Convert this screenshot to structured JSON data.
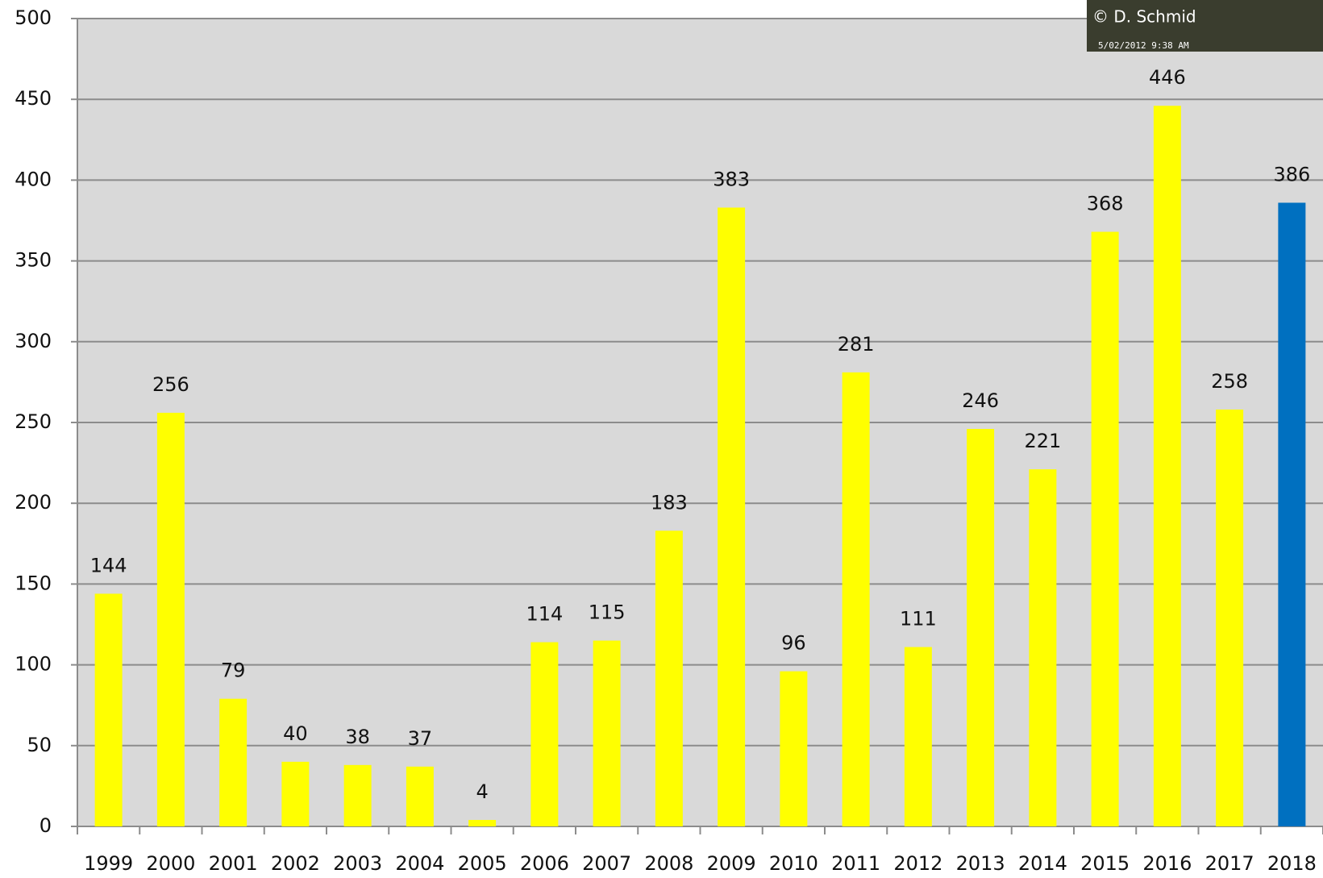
{
  "chart_data": {
    "type": "bar",
    "categories": [
      "1999",
      "2000",
      "2001",
      "2002",
      "2003",
      "2004",
      "2005",
      "2006",
      "2007",
      "2008",
      "2009",
      "2010",
      "2011",
      "2012",
      "2013",
      "2014",
      "2015",
      "2016",
      "2017",
      "2018"
    ],
    "values": [
      144,
      256,
      79,
      40,
      38,
      37,
      4,
      114,
      115,
      183,
      383,
      96,
      281,
      111,
      246,
      221,
      368,
      446,
      258,
      386
    ],
    "colors": [
      "#ffff00",
      "#ffff00",
      "#ffff00",
      "#ffff00",
      "#ffff00",
      "#ffff00",
      "#ffff00",
      "#ffff00",
      "#ffff00",
      "#ffff00",
      "#ffff00",
      "#ffff00",
      "#ffff00",
      "#ffff00",
      "#ffff00",
      "#ffff00",
      "#ffff00",
      "#ffff00",
      "#ffff00",
      "#0070c0"
    ],
    "ylim": [
      0,
      500
    ],
    "yticks": [
      0,
      50,
      100,
      150,
      200,
      250,
      300,
      350,
      400,
      450,
      500
    ],
    "grid": true,
    "photo": {
      "credit": "© D. Schmid",
      "timestamp": "5/02/2012 9:38 AM"
    }
  }
}
